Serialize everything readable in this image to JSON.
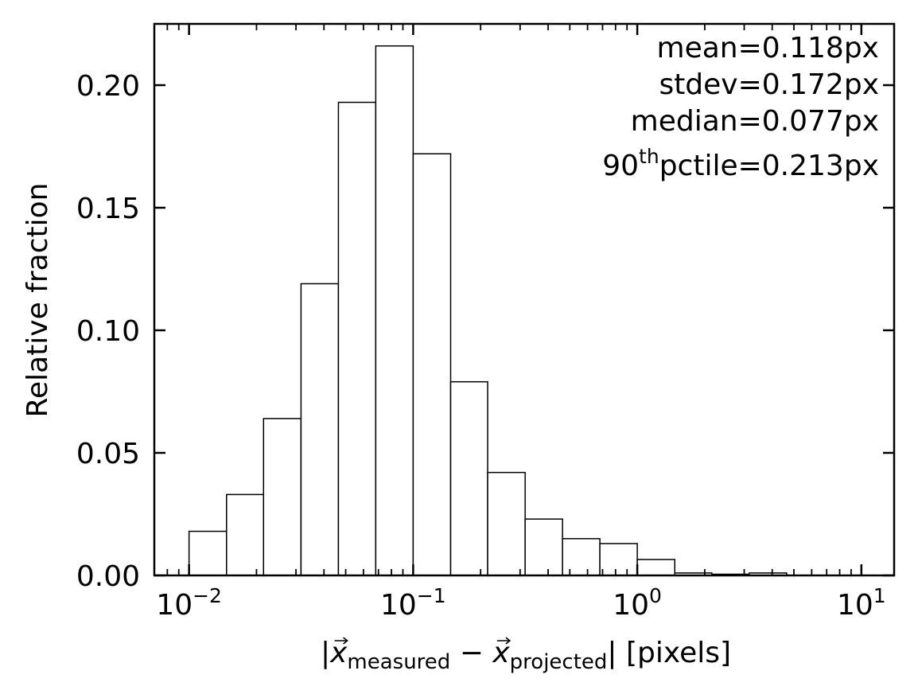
{
  "chart_data": {
    "type": "histogram",
    "xscale": "log",
    "xlim": [
      0.007,
      14
    ],
    "ylim": [
      0,
      0.225
    ],
    "bin_edges": [
      0.01,
      0.0147,
      0.0215,
      0.0316,
      0.0464,
      0.0681,
      0.1,
      0.147,
      0.215,
      0.316,
      0.464,
      0.681,
      1.0,
      1.47,
      2.15,
      3.16,
      4.64
    ],
    "values": [
      0.018,
      0.033,
      0.064,
      0.119,
      0.193,
      0.216,
      0.172,
      0.079,
      0.042,
      0.023,
      0.015,
      0.013,
      0.0065,
      0.001,
      0.0005,
      0.001
    ],
    "x_ticks": [
      {
        "value": 0.01,
        "base": "10",
        "exp": "−2"
      },
      {
        "value": 0.1,
        "base": "10",
        "exp": "−1"
      },
      {
        "value": 1,
        "base": "10",
        "exp": "0"
      },
      {
        "value": 10,
        "base": "10",
        "exp": "1"
      }
    ],
    "y_ticks": [
      {
        "value": 0.0,
        "label": "0.00"
      },
      {
        "value": 0.05,
        "label": "0.05"
      },
      {
        "value": 0.1,
        "label": "0.10"
      },
      {
        "value": 0.15,
        "label": "0.15"
      },
      {
        "value": 0.2,
        "label": "0.20"
      }
    ],
    "ylabel": "Relative fraction",
    "xlabel": {
      "prefix": "|",
      "var1": "x",
      "sub1": "measured",
      "operator": " − ",
      "var2": "x",
      "sub2": "projected",
      "suffix": "| [pixels]"
    },
    "stats": {
      "mean": "mean=0.118px",
      "stdev": "stdev=0.172px",
      "median": "median=0.077px",
      "pctile_num": "90",
      "pctile_sup": "th",
      "pctile_rest": "pctile=0.213px"
    },
    "bar_fill": "#ffffff",
    "bar_edge": "#000000",
    "grid": false
  }
}
